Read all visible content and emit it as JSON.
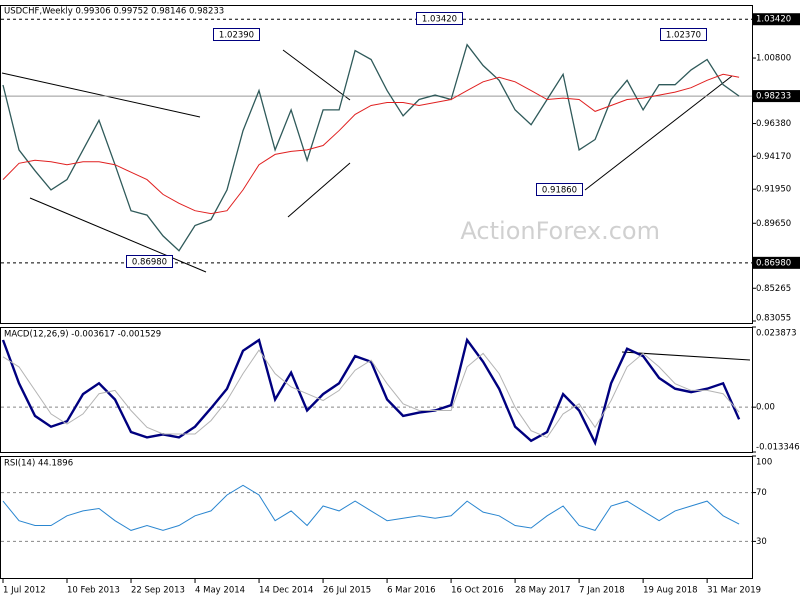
{
  "chart_data": [
    {
      "type": "line",
      "title": "USDCHF,Weekly  0.99306 0.99752 0.98146 0.98233",
      "watermark": "ActionForex.com",
      "x": [
        "2012-07-01",
        "2012-08-26",
        "2012-10-21",
        "2012-12-16",
        "2013-02-10",
        "2013-04-07",
        "2013-06-02",
        "2013-07-28",
        "2013-09-22",
        "2013-11-17",
        "2014-01-12",
        "2014-03-09",
        "2014-05-04",
        "2014-06-29",
        "2014-08-24",
        "2014-10-19",
        "2014-12-14",
        "2015-02-08",
        "2015-04-05",
        "2015-05-31",
        "2015-07-26",
        "2015-09-20",
        "2015-11-15",
        "2016-01-10",
        "2016-03-06",
        "2016-05-01",
        "2016-06-26",
        "2016-08-21",
        "2016-10-16",
        "2016-12-11",
        "2017-02-05",
        "2017-04-02",
        "2017-05-28",
        "2017-07-23",
        "2017-09-17",
        "2017-11-12",
        "2018-01-07",
        "2018-03-04",
        "2018-04-29",
        "2018-06-24",
        "2018-08-19",
        "2018-10-14",
        "2018-12-09",
        "2019-02-03",
        "2019-03-31",
        "2019-05-26",
        "2019-07-21"
      ],
      "xlim": [
        "2012-06-24",
        "2019-09-04"
      ],
      "xticks": [
        {
          "value": "2012-07-01",
          "label": "1 Jul 2012"
        },
        {
          "value": "2013-02-10",
          "label": "10 Feb 2013"
        },
        {
          "value": "2013-09-22",
          "label": "22 Sep 2013"
        },
        {
          "value": "2014-05-04",
          "label": "4 May 2014"
        },
        {
          "value": "2014-12-14",
          "label": "14 Dec 2014"
        },
        {
          "value": "2015-07-26",
          "label": "26 Jul 2015"
        },
        {
          "value": "2016-03-06",
          "label": "6 Mar 2016"
        },
        {
          "value": "2016-10-16",
          "label": "16 Oct 2016"
        },
        {
          "value": "2017-05-28",
          "label": "28 May 2017"
        },
        {
          "value": "2018-01-07",
          "label": "7 Jan 2018"
        },
        {
          "value": "2018-08-19",
          "label": "19 Aug 2018"
        },
        {
          "value": "2019-03-31",
          "label": "31 Mar 2019"
        }
      ],
      "ylim": [
        0.8292,
        1.0438
      ],
      "yticks": [
        {
          "value": 1.008,
          "label": "1.00800"
        },
        {
          "value": 0.9638,
          "label": "0.96380"
        },
        {
          "value": 0.9417,
          "label": "0.94170"
        },
        {
          "value": 0.9195,
          "label": "0.91950"
        },
        {
          "value": 0.8965,
          "label": "0.89650"
        },
        {
          "value": 0.85265,
          "label": "0.85265"
        },
        {
          "value": 0.83055,
          "label": "0.83055"
        }
      ],
      "grid": false,
      "levels": [
        {
          "value": 1.0342,
          "label": "1.03420",
          "dashed": true
        },
        {
          "value": 0.98233,
          "label": "0.98233",
          "dashed": false
        },
        {
          "value": 0.8698,
          "label": "0.86980",
          "dashed": true
        }
      ],
      "annotations": [
        "1.02390",
        "1.03420",
        "1.02370",
        "0.91860",
        "0.86980"
      ],
      "series": [
        {
          "color": "#2f5a5a",
          "values": [
            0.9898,
            0.946,
            0.932,
            0.919,
            0.926,
            0.946,
            0.966,
            0.936,
            0.905,
            0.902,
            0.888,
            0.878,
            0.895,
            0.899,
            0.919,
            0.959,
            0.986,
            0.946,
            0.973,
            0.939,
            0.973,
            0.973,
            1.013,
            1.007,
            0.986,
            0.969,
            0.98,
            0.983,
            0.98,
            1.017,
            1.003,
            0.993,
            0.973,
            0.963,
            0.98,
            0.997,
            0.946,
            0.953,
            0.98,
            0.993,
            0.973,
            0.99,
            0.99,
            1.0,
            1.007,
            0.99,
            0.9823
          ]
        },
        {
          "color": "#e02020",
          "values": [
            0.926,
            0.937,
            0.939,
            0.938,
            0.936,
            0.938,
            0.938,
            0.936,
            0.931,
            0.926,
            0.916,
            0.91,
            0.905,
            0.903,
            0.905,
            0.919,
            0.936,
            0.943,
            0.945,
            0.946,
            0.949,
            0.959,
            0.97,
            0.976,
            0.978,
            0.978,
            0.976,
            0.978,
            0.98,
            0.986,
            0.992,
            0.995,
            0.992,
            0.986,
            0.98,
            0.981,
            0.98,
            0.972,
            0.976,
            0.98,
            0.981,
            0.983,
            0.985,
            0.988,
            0.993,
            0.997,
            0.995
          ]
        }
      ]
    },
    {
      "type": "line",
      "title": "MACD(12,26,9) -0.003617 -0.001529",
      "ylim": [
        -0.013346,
        0.023873
      ],
      "yticks": [
        0.023873,
        {
          "value": 0,
          "label": "0.00"
        },
        -0.013346
      ],
      "grid": true,
      "series": [
        {
          "color": "#00007f",
          "values": [
            0.02,
            0.0071,
            -0.0026,
            -0.0058,
            -0.0042,
            0.0039,
            0.0071,
            0.0023,
            -0.0074,
            -0.009,
            -0.0081,
            -0.009,
            -0.0058,
            -0.0003,
            0.0055,
            0.0168,
            0.02,
            0.0023,
            0.0103,
            -0.001,
            0.0039,
            0.0071,
            0.0152,
            0.0135,
            0.0023,
            -0.0026,
            -0.0016,
            -0.001,
            0.0006,
            0.02,
            0.0135,
            0.0055,
            -0.0058,
            -0.01,
            -0.0074,
            0.0039,
            -0.001,
            -0.0106,
            0.0071,
            0.0174,
            0.0152,
            0.0087,
            0.0055,
            0.0045,
            0.0055,
            0.0071,
            -0.0036
          ]
        },
        {
          "color": "#b4b4b4",
          "values": [
            0.015,
            0.012,
            0.005,
            -0.002,
            -0.005,
            -0.002,
            0.004,
            0.005,
            -0.001,
            -0.006,
            -0.008,
            -0.008,
            -0.008,
            -0.004,
            0.002,
            0.01,
            0.017,
            0.01,
            0.006,
            0.004,
            0.002,
            0.005,
            0.011,
            0.014,
            0.007,
            0.001,
            -0.001,
            -0.001,
            -0.001,
            0.012,
            0.016,
            0.01,
            0.0,
            -0.007,
            -0.009,
            -0.002,
            0.001,
            -0.006,
            0.002,
            0.012,
            0.016,
            0.012,
            0.007,
            0.005,
            0.005,
            0.004,
            -0.0015
          ]
        }
      ]
    },
    {
      "type": "line",
      "title": "RSI(14) 44.1896",
      "ylim": [
        0,
        100
      ],
      "yticks": [
        100,
        70,
        30
      ],
      "grid": true,
      "series": [
        {
          "color": "#2a86d0",
          "values": [
            63,
            47,
            43,
            43,
            51,
            55,
            57,
            47,
            39,
            43,
            39,
            43,
            51,
            55,
            68,
            76,
            68,
            47,
            55,
            43,
            59,
            55,
            63,
            55,
            47,
            49,
            51,
            49,
            51,
            63,
            54,
            51,
            43,
            41,
            51,
            59,
            43,
            39,
            59,
            63,
            55,
            47,
            55,
            59,
            63,
            51,
            44.19
          ]
        }
      ]
    }
  ]
}
